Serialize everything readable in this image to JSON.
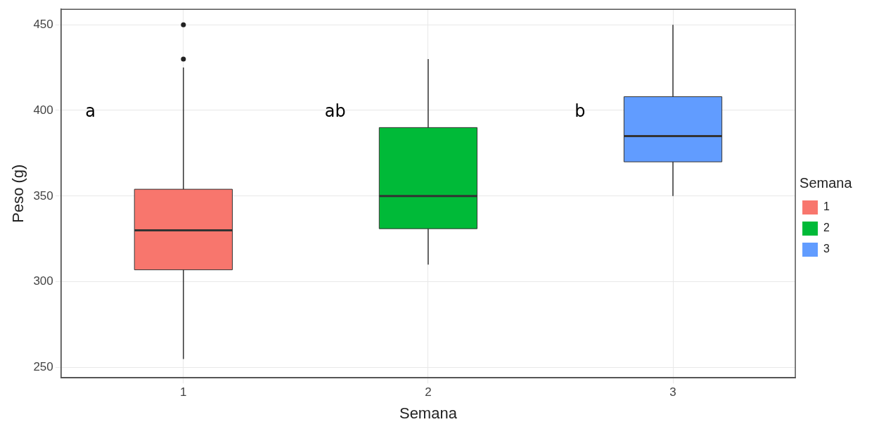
{
  "chart_data": {
    "type": "box",
    "xlabel": "Semana",
    "ylabel": "Peso (g)",
    "legend_title": "Semana",
    "categories": [
      "1",
      "2",
      "3"
    ],
    "series": [
      {
        "name": "1",
        "color": "#f8766d",
        "boxes": [
          {
            "low": 255,
            "q1": 307,
            "median": 330,
            "q3": 354,
            "high": 425,
            "outliers": [
              430,
              450
            ]
          },
          null,
          null
        ]
      },
      {
        "name": "2",
        "color": "#00ba38",
        "boxes": [
          null,
          {
            "low": 310,
            "q1": 331,
            "median": 350,
            "q3": 390,
            "high": 430
          },
          null
        ]
      },
      {
        "name": "3",
        "color": "#619cff",
        "boxes": [
          null,
          null,
          {
            "low": 350,
            "q1": 370,
            "median": 385,
            "q3": 408,
            "high": 450
          }
        ]
      }
    ],
    "ylim": [
      244,
      459
    ],
    "yticks": [
      250,
      300,
      350,
      400,
      450
    ],
    "grid": true,
    "legend": "right",
    "annotations": [
      "a",
      "ab",
      "b"
    ]
  }
}
